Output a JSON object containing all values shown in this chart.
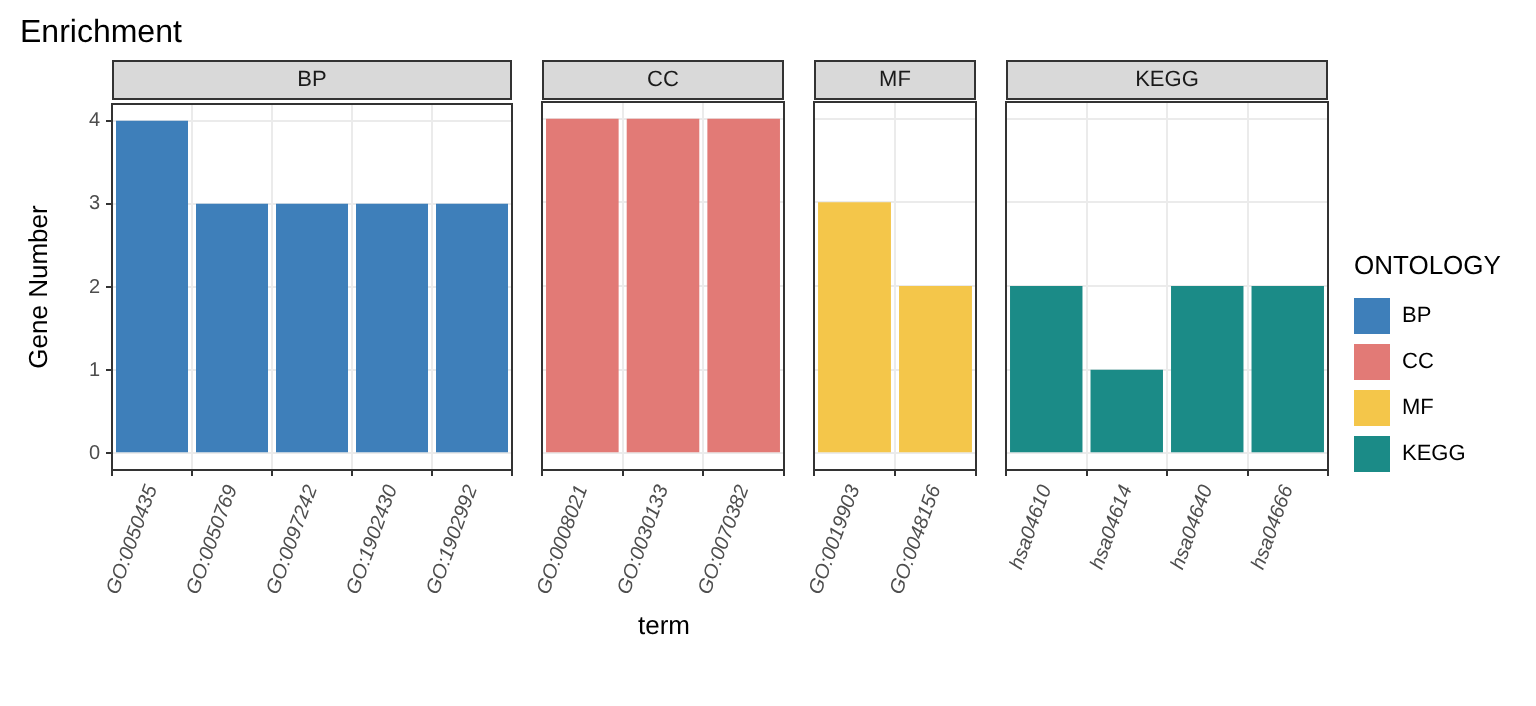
{
  "chart_data": [
    {
      "type": "bar",
      "title": "Enrichment",
      "subtitle": "BP",
      "ylabel": "Gene Number",
      "categories": [
        "GO:0050435",
        "GO:0050769",
        "GO:0097242",
        "GO:1902430",
        "GO:1902992"
      ],
      "series": [
        {
          "name": "BP",
          "color": "#3e7fba",
          "values": [
            4,
            3,
            3,
            3,
            3
          ]
        }
      ],
      "ylim": [
        -0.2,
        4.2
      ],
      "yticks": [
        0,
        1,
        2,
        3,
        4
      ],
      "grid": true
    },
    {
      "type": "bar",
      "subtitle": "CC",
      "xlabel": "term",
      "categories": [
        "GO:0008021",
        "GO:0030133",
        "GO:0070382"
      ],
      "series": [
        {
          "name": "CC",
          "color": "#e27a76",
          "values": [
            4,
            4,
            4
          ]
        }
      ],
      "ylim": [
        -0.2,
        4.2
      ],
      "yticks": [
        0,
        1,
        2,
        3,
        4
      ],
      "grid": true,
      "tick_labels": "x"
    },
    {
      "type": "bar",
      "subtitle": "MF",
      "categories": [
        "GO:0019903",
        "GO:0048156"
      ],
      "series": [
        {
          "name": "MF",
          "color": "#f4c64a",
          "values": [
            3,
            2
          ]
        }
      ],
      "ylim": [
        -0.2,
        4.2
      ],
      "yticks": [
        0,
        1,
        2,
        3,
        4
      ],
      "grid": true,
      "tick_labels": "x"
    },
    {
      "type": "bar",
      "subtitle": "KEGG",
      "categories": [
        "hsa04610",
        "hsa04614",
        "hsa04640",
        "hsa04666"
      ],
      "series": [
        {
          "name": "KEGG",
          "color": "#1b8b87",
          "values": [
            2,
            1,
            2,
            2
          ]
        }
      ],
      "ylim": [
        -0.2,
        4.2
      ],
      "yticks": [
        0,
        1,
        2,
        3,
        4
      ],
      "grid": true,
      "tick_labels": "x",
      "legend": "right",
      "legend_title": "ONTOLOGY"
    }
  ]
}
